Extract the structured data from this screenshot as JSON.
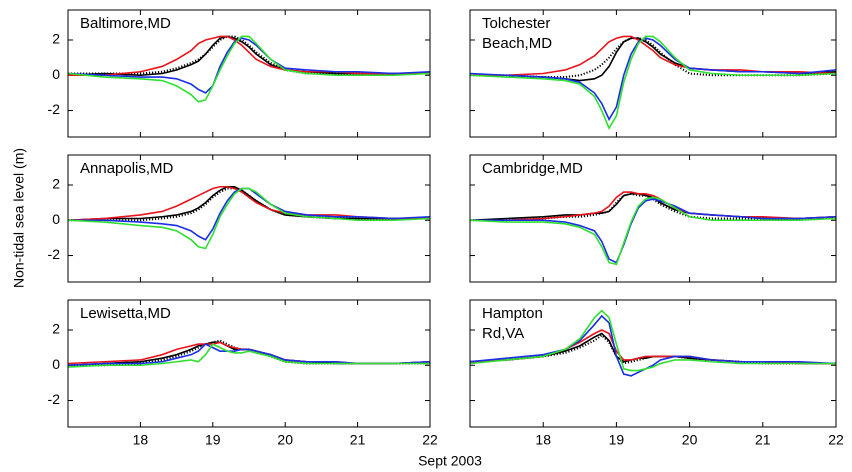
{
  "figure": {
    "ylabel": "Non-tidal sea level (m)",
    "xlabel": "Sept 2003"
  },
  "chart_data": [
    {
      "type": "line",
      "title": [
        "Baltimore,MD"
      ],
      "xlim": [
        17,
        22
      ],
      "ylim": [
        -3.5,
        3.7
      ],
      "xticks": [
        18,
        19,
        20,
        21,
        22
      ],
      "yticks": [
        -2,
        0,
        2
      ],
      "show_xtick_labels": false,
      "show_ytick_labels": true,
      "x": [
        17,
        17.5,
        18,
        18.3,
        18.5,
        18.7,
        18.8,
        18.9,
        19,
        19.1,
        19.2,
        19.3,
        19.4,
        19.5,
        19.6,
        19.8,
        20,
        20.3,
        20.7,
        21,
        21.5,
        22
      ],
      "series": [
        {
          "color": "#000000",
          "style": "solid",
          "values": [
            0,
            0.1,
            0,
            0.1,
            0.3,
            0.6,
            0.8,
            1.2,
            1.7,
            2.1,
            2.2,
            2.1,
            1.9,
            1.6,
            1.2,
            0.6,
            0.3,
            0.2,
            0.1,
            0.1,
            0.1,
            0.1
          ]
        },
        {
          "color": "#000000",
          "style": "dotted",
          "values": [
            0.1,
            0.1,
            0.1,
            0.2,
            0.4,
            0.7,
            0.9,
            1.2,
            1.6,
            2.0,
            2.2,
            2.2,
            2.0,
            1.7,
            1.3,
            0.7,
            0.3,
            0.1,
            0.1,
            0.1,
            0.1,
            0.1
          ]
        },
        {
          "color": "#e8141c",
          "style": "solid",
          "values": [
            0,
            0,
            0.2,
            0.5,
            0.9,
            1.4,
            1.8,
            2.0,
            2.1,
            2.2,
            2.2,
            2.0,
            1.7,
            1.3,
            0.9,
            0.5,
            0.3,
            0.2,
            0.2,
            0.1,
            0.1,
            0.1
          ]
        },
        {
          "color": "#1a2ee8",
          "style": "solid",
          "values": [
            0.1,
            0,
            -0.1,
            -0.1,
            -0.2,
            -0.5,
            -0.8,
            -1.0,
            -0.6,
            0.5,
            1.3,
            1.9,
            2.1,
            2.0,
            1.7,
            0.9,
            0.4,
            0.3,
            0.2,
            0.2,
            0.1,
            0.2
          ]
        },
        {
          "color": "#2fe02f",
          "style": "solid",
          "values": [
            0.1,
            -0.1,
            -0.2,
            -0.3,
            -0.6,
            -1.1,
            -1.5,
            -1.4,
            -0.6,
            0.3,
            1.1,
            1.8,
            2.2,
            2.2,
            1.8,
            0.9,
            0.3,
            0.1,
            0,
            0,
            0,
            0.1
          ]
        }
      ]
    },
    {
      "type": "line",
      "title": [
        "Tolchester",
        "Beach,MD"
      ],
      "xlim": [
        17,
        22
      ],
      "ylim": [
        -3.5,
        3.7
      ],
      "xticks": [
        18,
        19,
        20,
        21,
        22
      ],
      "yticks": [
        -2,
        0,
        2
      ],
      "show_xtick_labels": false,
      "show_ytick_labels": false,
      "x": [
        17,
        17.5,
        18,
        18.3,
        18.5,
        18.7,
        18.8,
        18.9,
        19,
        19.1,
        19.2,
        19.3,
        19.4,
        19.5,
        19.6,
        19.8,
        20,
        20.3,
        20.7,
        21,
        21.5,
        22
      ],
      "series": [
        {
          "color": "#000000",
          "style": "solid",
          "values": [
            0,
            0,
            -0.1,
            -0.2,
            -0.3,
            -0.2,
            0,
            0.5,
            1.3,
            1.9,
            2.1,
            2.1,
            1.9,
            1.6,
            1.2,
            0.7,
            0.4,
            0.3,
            0.2,
            0.2,
            0.1,
            0.2
          ]
        },
        {
          "color": "#000000",
          "style": "dotted",
          "values": [
            0,
            0,
            -0.1,
            -0.1,
            0,
            0.3,
            0.6,
            1.0,
            1.5,
            1.9,
            2.1,
            2.1,
            2.0,
            1.7,
            1.3,
            0.6,
            0.1,
            0,
            0,
            0,
            0,
            0.1
          ]
        },
        {
          "color": "#e8141c",
          "style": "solid",
          "values": [
            0,
            0,
            0.1,
            0.3,
            0.6,
            1.1,
            1.5,
            1.9,
            2.1,
            2.2,
            2.2,
            2.0,
            1.7,
            1.4,
            1.0,
            0.6,
            0.4,
            0.3,
            0.3,
            0.2,
            0.2,
            0.1
          ]
        },
        {
          "color": "#1a2ee8",
          "style": "solid",
          "values": [
            0.1,
            0,
            -0.1,
            -0.2,
            -0.4,
            -1.0,
            -1.6,
            -2.5,
            -1.8,
            0,
            1.2,
            1.9,
            2.1,
            2.0,
            1.7,
            0.9,
            0.4,
            0.3,
            0.2,
            0.2,
            0.1,
            0.3
          ]
        },
        {
          "color": "#2fe02f",
          "style": "solid",
          "values": [
            0,
            -0.1,
            -0.2,
            -0.3,
            -0.5,
            -1.2,
            -2.0,
            -3.0,
            -2.3,
            -0.4,
            0.9,
            1.8,
            2.2,
            2.2,
            1.9,
            1.0,
            0.3,
            0.1,
            0,
            0,
            0,
            0.1
          ]
        }
      ]
    },
    {
      "type": "line",
      "title": [
        "Annapolis,MD"
      ],
      "xlim": [
        17,
        22
      ],
      "ylim": [
        -3.5,
        3.7
      ],
      "xticks": [
        18,
        19,
        20,
        21,
        22
      ],
      "yticks": [
        -2,
        0,
        2
      ],
      "show_xtick_labels": false,
      "show_ytick_labels": true,
      "x": [
        17,
        17.5,
        18,
        18.3,
        18.5,
        18.7,
        18.8,
        18.9,
        19,
        19.1,
        19.2,
        19.3,
        19.4,
        19.5,
        19.6,
        19.8,
        20,
        20.3,
        20.7,
        21,
        21.5,
        22
      ],
      "series": [
        {
          "color": "#000000",
          "style": "solid",
          "values": [
            0,
            0.1,
            0.1,
            0.2,
            0.3,
            0.5,
            0.7,
            1.0,
            1.4,
            1.7,
            1.9,
            1.9,
            1.7,
            1.4,
            1.1,
            0.6,
            0.3,
            0.2,
            0.1,
            0.1,
            0.1,
            0.1
          ]
        },
        {
          "color": "#000000",
          "style": "dotted",
          "values": [
            0,
            0,
            0,
            0.1,
            0.2,
            0.4,
            0.6,
            0.9,
            1.3,
            1.6,
            1.8,
            1.8,
            1.7,
            1.4,
            1.1,
            0.6,
            0.3,
            0.2,
            0.1,
            0.1,
            0.1,
            0.1
          ]
        },
        {
          "color": "#e8141c",
          "style": "solid",
          "values": [
            0,
            0.1,
            0.3,
            0.5,
            0.8,
            1.2,
            1.4,
            1.6,
            1.8,
            1.9,
            1.9,
            1.8,
            1.6,
            1.3,
            1.0,
            0.6,
            0.4,
            0.3,
            0.3,
            0.2,
            0.1,
            0.1
          ]
        },
        {
          "color": "#1a2ee8",
          "style": "solid",
          "values": [
            0,
            0,
            -0.1,
            -0.2,
            -0.3,
            -0.6,
            -0.9,
            -1.1,
            -0.5,
            0.4,
            1.1,
            1.6,
            1.8,
            1.8,
            1.5,
            0.9,
            0.5,
            0.3,
            0.2,
            0.2,
            0.1,
            0.2
          ]
        },
        {
          "color": "#2fe02f",
          "style": "solid",
          "values": [
            0,
            -0.1,
            -0.3,
            -0.4,
            -0.6,
            -1.1,
            -1.5,
            -1.6,
            -0.8,
            0.2,
            0.9,
            1.5,
            1.8,
            1.8,
            1.6,
            0.9,
            0.4,
            0.2,
            0.1,
            0,
            0,
            0.1
          ]
        }
      ]
    },
    {
      "type": "line",
      "title": [
        "Cambridge,MD"
      ],
      "xlim": [
        17,
        22
      ],
      "ylim": [
        -3.5,
        3.7
      ],
      "xticks": [
        18,
        19,
        20,
        21,
        22
      ],
      "yticks": [
        -2,
        0,
        2
      ],
      "show_xtick_labels": false,
      "show_ytick_labels": false,
      "x": [
        17,
        17.5,
        18,
        18.3,
        18.5,
        18.7,
        18.8,
        18.9,
        19,
        19.1,
        19.2,
        19.3,
        19.4,
        19.5,
        19.6,
        19.8,
        20,
        20.3,
        20.7,
        21,
        21.5,
        22
      ],
      "series": [
        {
          "color": "#000000",
          "style": "solid",
          "values": [
            0,
            0.1,
            0.2,
            0.3,
            0.3,
            0.4,
            0.4,
            0.5,
            0.9,
            1.4,
            1.5,
            1.5,
            1.4,
            1.3,
            1.0,
            0.6,
            0.4,
            0.3,
            0.2,
            0.1,
            0.1,
            0.2
          ]
        },
        {
          "color": "#000000",
          "style": "dotted",
          "values": [
            0,
            0,
            0.1,
            0.2,
            0.2,
            0.3,
            0.4,
            0.5,
            1.0,
            1.4,
            1.5,
            1.4,
            1.4,
            1.2,
            0.9,
            0.5,
            0.2,
            0.1,
            0.1,
            0.1,
            0.1,
            0.1
          ]
        },
        {
          "color": "#e8141c",
          "style": "solid",
          "values": [
            0,
            0,
            0.1,
            0.2,
            0.3,
            0.4,
            0.5,
            0.8,
            1.3,
            1.6,
            1.6,
            1.5,
            1.5,
            1.4,
            1.2,
            0.7,
            0.4,
            0.3,
            0.2,
            0.2,
            0.1,
            0.2
          ]
        },
        {
          "color": "#1a2ee8",
          "style": "solid",
          "values": [
            0,
            0,
            0,
            -0.1,
            -0.3,
            -0.6,
            -1.2,
            -2.2,
            -2.4,
            -1.4,
            -0.2,
            0.7,
            1.1,
            1.2,
            1.1,
            0.8,
            0.4,
            0.3,
            0.2,
            0.1,
            0.1,
            0.2
          ]
        },
        {
          "color": "#2fe02f",
          "style": "solid",
          "values": [
            0,
            -0.1,
            -0.1,
            -0.2,
            -0.4,
            -0.8,
            -1.5,
            -2.4,
            -2.5,
            -1.3,
            -0.1,
            0.8,
            1.2,
            1.3,
            1.2,
            0.7,
            0.2,
            0,
            0,
            0,
            0,
            0.1
          ]
        }
      ]
    },
    {
      "type": "line",
      "title": [
        "Lewisetta,MD"
      ],
      "xlim": [
        17,
        22
      ],
      "ylim": [
        -3.5,
        3.7
      ],
      "xticks": [
        18,
        19,
        20,
        21,
        22
      ],
      "yticks": [
        -2,
        0,
        2
      ],
      "show_xtick_labels": true,
      "show_ytick_labels": true,
      "x": [
        17,
        17.5,
        18,
        18.3,
        18.5,
        18.7,
        18.8,
        18.9,
        19,
        19.1,
        19.2,
        19.3,
        19.4,
        19.5,
        19.6,
        19.8,
        20,
        20.3,
        20.7,
        21,
        21.5,
        22
      ],
      "series": [
        {
          "color": "#000000",
          "style": "solid",
          "values": [
            0,
            0.1,
            0.2,
            0.4,
            0.6,
            0.9,
            1.1,
            1.2,
            1.3,
            1.3,
            1.1,
            0.9,
            0.9,
            0.9,
            0.8,
            0.6,
            0.3,
            0.2,
            0.1,
            0.1,
            0.1,
            0.2
          ]
        },
        {
          "color": "#000000",
          "style": "dotted",
          "values": [
            0,
            0,
            0.1,
            0.3,
            0.5,
            0.8,
            1.0,
            1.2,
            1.3,
            1.4,
            1.2,
            1.0,
            0.9,
            0.9,
            0.8,
            0.5,
            0.2,
            0.1,
            0.1,
            0.1,
            0.1,
            0.1
          ]
        },
        {
          "color": "#e8141c",
          "style": "solid",
          "values": [
            0.1,
            0.2,
            0.3,
            0.6,
            0.9,
            1.1,
            1.2,
            1.2,
            1.2,
            1.3,
            1.1,
            1.0,
            0.9,
            0.9,
            0.8,
            0.6,
            0.3,
            0.2,
            0.2,
            0.1,
            0.1,
            0.2
          ]
        },
        {
          "color": "#1a2ee8",
          "style": "solid",
          "values": [
            0,
            0.1,
            0.1,
            0.2,
            0.4,
            0.6,
            0.8,
            1.2,
            1.0,
            0.8,
            0.8,
            0.8,
            0.9,
            0.9,
            0.8,
            0.6,
            0.3,
            0.2,
            0.2,
            0.1,
            0.1,
            0.2
          ]
        },
        {
          "color": "#2fe02f",
          "style": "solid",
          "values": [
            -0.1,
            0,
            0,
            0.1,
            0.2,
            0.3,
            0.2,
            0.6,
            1.2,
            1.0,
            0.8,
            0.7,
            0.7,
            0.8,
            0.7,
            0.5,
            0.2,
            0.1,
            0.1,
            0.1,
            0.1,
            0.1
          ]
        }
      ]
    },
    {
      "type": "line",
      "title": [
        "Hampton",
        "Rd,VA"
      ],
      "xlim": [
        17,
        22
      ],
      "ylim": [
        -3.5,
        3.7
      ],
      "xticks": [
        18,
        19,
        20,
        21,
        22
      ],
      "yticks": [
        -2,
        0,
        2
      ],
      "show_xtick_labels": true,
      "show_ytick_labels": false,
      "x": [
        17,
        17.5,
        18,
        18.3,
        18.5,
        18.7,
        18.8,
        18.9,
        19,
        19.1,
        19.2,
        19.3,
        19.4,
        19.5,
        19.6,
        19.8,
        20,
        20.3,
        20.7,
        21,
        21.5,
        22
      ],
      "series": [
        {
          "color": "#000000",
          "style": "solid",
          "values": [
            0.2,
            0.3,
            0.5,
            0.8,
            1.1,
            1.6,
            1.8,
            1.4,
            0.5,
            0.2,
            0.3,
            0.4,
            0.4,
            0.5,
            0.5,
            0.5,
            0.4,
            0.3,
            0.2,
            0.2,
            0.1,
            0.1
          ]
        },
        {
          "color": "#000000",
          "style": "dotted",
          "values": [
            0.2,
            0.3,
            0.5,
            0.7,
            1.0,
            1.4,
            1.7,
            1.3,
            0.5,
            0.1,
            0.2,
            0.3,
            0.4,
            0.5,
            0.5,
            0.5,
            0.4,
            0.3,
            0.2,
            0.1,
            0.1,
            0.1
          ]
        },
        {
          "color": "#e8141c",
          "style": "solid",
          "values": [
            0.2,
            0.3,
            0.5,
            0.9,
            1.3,
            1.8,
            2.0,
            1.8,
            0.8,
            0.3,
            0.3,
            0.4,
            0.5,
            0.5,
            0.5,
            0.5,
            0.5,
            0.3,
            0.2,
            0.2,
            0.1,
            0.1
          ]
        },
        {
          "color": "#1a2ee8",
          "style": "solid",
          "values": [
            0.2,
            0.4,
            0.6,
            0.9,
            1.4,
            2.3,
            2.8,
            2.4,
            0.5,
            -0.5,
            -0.6,
            -0.4,
            -0.2,
            0,
            0.3,
            0.5,
            0.5,
            0.3,
            0.2,
            0.2,
            0.2,
            0.1
          ]
        },
        {
          "color": "#2fe02f",
          "style": "solid",
          "values": [
            0.1,
            0.3,
            0.5,
            0.9,
            1.5,
            2.7,
            3.1,
            2.7,
            1.2,
            -0.2,
            -0.3,
            -0.3,
            -0.2,
            -0.1,
            0.1,
            0.3,
            0.3,
            0.2,
            0.1,
            0.1,
            0.1,
            0.1
          ]
        }
      ]
    }
  ]
}
